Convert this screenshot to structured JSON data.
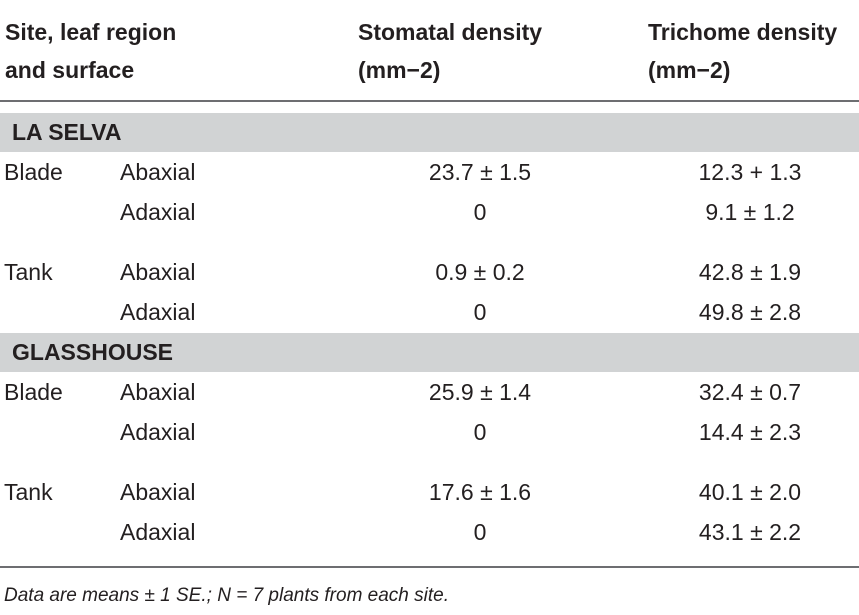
{
  "header": {
    "col1_line1": "Site, leaf region",
    "col1_line2": "and surface",
    "col2_line1": "Stomatal density",
    "col2_line2": "(mm−2)",
    "col3_line1": "Trichome density",
    "col3_line2": "(mm−2)"
  },
  "sections": [
    {
      "name": "LA SELVA",
      "rows": [
        {
          "region": "Blade",
          "surface": "Abaxial",
          "stomatal": "23.7 ± 1.5",
          "trichome": "12.3 + 1.3"
        },
        {
          "region": "",
          "surface": "Adaxial",
          "stomatal": "0",
          "trichome": "9.1 ± 1.2"
        },
        {
          "region": "Tank",
          "surface": "Abaxial",
          "stomatal": "0.9 ± 0.2",
          "trichome": "42.8 ± 1.9"
        },
        {
          "region": "",
          "surface": "Adaxial",
          "stomatal": "0",
          "trichome": "49.8 ± 2.8"
        }
      ]
    },
    {
      "name": "GLASSHOUSE",
      "rows": [
        {
          "region": "Blade",
          "surface": "Abaxial",
          "stomatal": "25.9 ± 1.4",
          "trichome": "32.4 ± 0.7"
        },
        {
          "region": "",
          "surface": "Adaxial",
          "stomatal": "0",
          "trichome": "14.4 ± 2.3"
        },
        {
          "region": "Tank",
          "surface": "Abaxial",
          "stomatal": "17.6 ± 1.6",
          "trichome": "40.1 ± 2.0"
        },
        {
          "region": "",
          "surface": "Adaxial",
          "stomatal": "0",
          "trichome": "43.1 ± 2.2"
        }
      ]
    }
  ],
  "footnote": "Data are means ± 1 SE.; N = 7 plants from each site."
}
